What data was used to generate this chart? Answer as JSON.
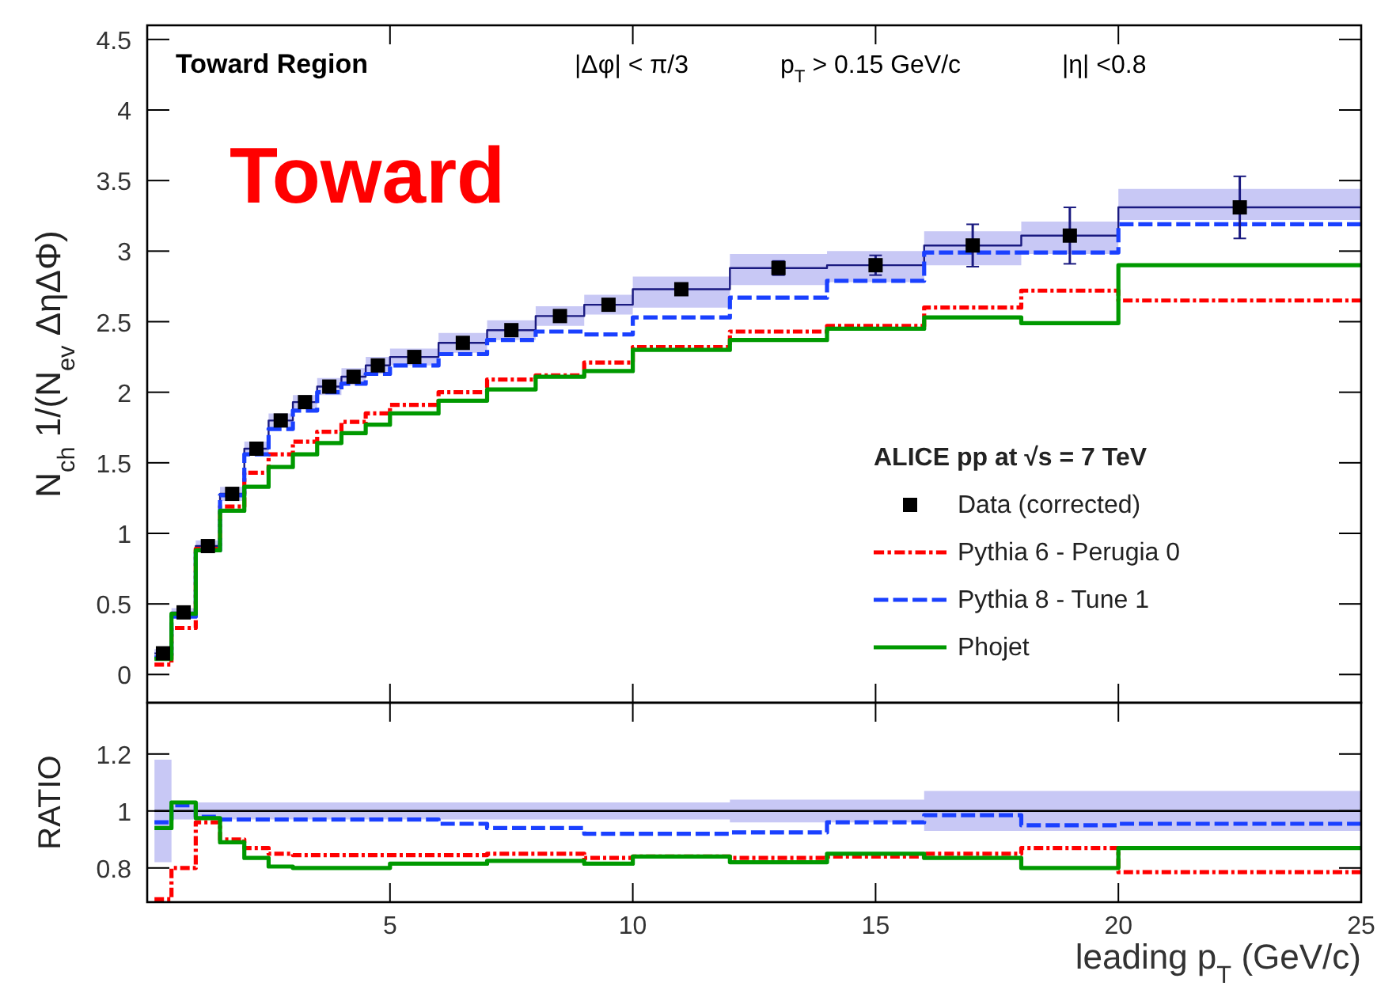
{
  "chart_data": [
    {
      "type": "step",
      "ylabel": "N$_{ch}$ 1/(N$_{ev}$ΔηΔΦ)",
      "annotations": [
        "Toward Region",
        "|Δφ| < π/3",
        "p$_{T}$ > 0.15 GeV/c",
        "|η| <0.8",
        "Toward"
      ],
      "legend_title": "ALICE pp at √s = 7 TeV",
      "legend": "bottom right",
      "xlim": [
        0,
        25
      ],
      "xticks": [
        5,
        10,
        15,
        20,
        25
      ],
      "ylim": [
        -0.2,
        4.6
      ],
      "yticks": [
        0,
        0.5,
        1,
        1.5,
        2,
        2.5,
        3,
        3.5,
        4,
        4.5
      ],
      "tick_labels": "y",
      "series": [
        {
          "color": "#1a1a80",
          "line_style": "solid",
          "x": [
            0.15,
            0.5,
            1,
            1.5,
            2,
            2.5,
            3,
            3.5,
            4,
            4.5,
            5,
            6,
            7,
            8,
            9,
            10,
            12,
            14,
            16,
            18,
            20,
            25
          ],
          "values": [
            0.15,
            0.44,
            0.91,
            1.28,
            1.6,
            1.8,
            1.93,
            2.04,
            2.11,
            2.19,
            2.25,
            2.35,
            2.44,
            2.54,
            2.62,
            2.73,
            2.88,
            2.9,
            3.04,
            3.11,
            3.31,
            3.31
          ],
          "lower": [
            0.12,
            0.41,
            0.87,
            1.23,
            1.55,
            1.75,
            1.88,
            1.98,
            2.05,
            2.13,
            2.19,
            2.28,
            2.37,
            2.47,
            2.55,
            2.6,
            2.76,
            2.78,
            2.9,
            2.98,
            3.22,
            3.22
          ],
          "upper": [
            0.18,
            0.47,
            0.95,
            1.33,
            1.65,
            1.85,
            1.98,
            2.1,
            2.17,
            2.25,
            2.31,
            2.42,
            2.51,
            2.61,
            2.69,
            2.82,
            2.98,
            3.0,
            3.14,
            3.21,
            3.44,
            3.44
          ]
        },
        {
          "name": "Pythia 6 -  Perugia 0",
          "color": "#ff0000",
          "line_style": "dashdot",
          "x": [
            0.15,
            0.5,
            1,
            1.5,
            2,
            2.5,
            3,
            3.5,
            4,
            4.5,
            5,
            6,
            7,
            8,
            9,
            10,
            12,
            14,
            16,
            18,
            20,
            25
          ],
          "values": [
            0.07,
            0.33,
            0.89,
            1.19,
            1.43,
            1.56,
            1.65,
            1.72,
            1.79,
            1.85,
            1.91,
            2.0,
            2.09,
            2.12,
            2.21,
            2.32,
            2.43,
            2.47,
            2.6,
            2.72,
            2.65,
            2.65
          ]
        },
        {
          "name": "Pythia 8 -  Tune 1",
          "color": "#1a40ff",
          "line_style": "dashed",
          "x": [
            0.15,
            0.5,
            1,
            1.5,
            2,
            2.5,
            3,
            3.5,
            4,
            4.5,
            5,
            6,
            7,
            8,
            9,
            10,
            12,
            14,
            16,
            18,
            20,
            25
          ],
          "values": [
            0.12,
            0.41,
            0.88,
            1.27,
            1.56,
            1.74,
            1.87,
            2.0,
            2.06,
            2.13,
            2.19,
            2.27,
            2.37,
            2.43,
            2.41,
            2.53,
            2.67,
            2.79,
            2.99,
            2.99,
            3.19,
            3.19
          ]
        },
        {
          "name": "Phojet",
          "color": "#009900",
          "line_style": "solid",
          "x": [
            0.15,
            0.5,
            1,
            1.5,
            2,
            2.5,
            3,
            3.5,
            4,
            4.5,
            5,
            6,
            7,
            8,
            9,
            10,
            12,
            14,
            16,
            18,
            20,
            25
          ],
          "values": [
            0.11,
            0.43,
            0.88,
            1.16,
            1.33,
            1.47,
            1.56,
            1.64,
            1.71,
            1.77,
            1.85,
            1.94,
            2.02,
            2.11,
            2.15,
            2.3,
            2.37,
            2.45,
            2.53,
            2.49,
            2.9,
            2.9
          ]
        },
        {
          "name": "Data (corrected)",
          "type": "scatter",
          "marker": "square",
          "color": "#000000",
          "x": [
            0.325,
            0.75,
            1.25,
            1.75,
            2.25,
            2.75,
            3.25,
            3.75,
            4.25,
            4.75,
            5.5,
            6.5,
            7.5,
            8.5,
            9.5,
            11,
            13,
            15,
            17,
            19,
            22.5
          ],
          "values": [
            0.15,
            0.44,
            0.91,
            1.28,
            1.6,
            1.8,
            1.93,
            2.04,
            2.11,
            2.19,
            2.25,
            2.35,
            2.44,
            2.54,
            2.62,
            2.73,
            2.88,
            2.9,
            3.04,
            3.11,
            3.31
          ],
          "errors": [
            null,
            null,
            null,
            null,
            null,
            null,
            null,
            null,
            null,
            null,
            null,
            null,
            null,
            null,
            null,
            null,
            0.05,
            0.07,
            0.15,
            0.2,
            0.22
          ]
        }
      ]
    },
    {
      "type": "step",
      "xlabel": "leading p$_{T}$ (GeV/c)",
      "ylabel": "RATIO",
      "xlim": [
        0,
        25
      ],
      "xticks": [
        5,
        10,
        15,
        20,
        25
      ],
      "ylim": [
        0.68,
        1.38
      ],
      "yticks": [
        0.8,
        1,
        1.2
      ],
      "series": [
        {
          "color": "#000000",
          "line_style": "solid",
          "x": [
            0.15,
            0.5,
            1,
            1.5,
            2,
            2.5,
            3,
            3.5,
            4,
            4.5,
            5,
            6,
            7,
            8,
            9,
            10,
            12,
            14,
            16,
            18,
            20,
            25
          ],
          "values": [
            1,
            1,
            1,
            1,
            1,
            1,
            1,
            1,
            1,
            1,
            1,
            1,
            1,
            1,
            1,
            1,
            1,
            1,
            1,
            1,
            1,
            1
          ],
          "lower": [
            0.82,
            0.97,
            0.97,
            0.97,
            0.97,
            0.97,
            0.97,
            0.97,
            0.97,
            0.97,
            0.97,
            0.97,
            0.97,
            0.97,
            0.97,
            0.97,
            0.96,
            0.96,
            0.93,
            0.93,
            0.93,
            0.93
          ],
          "upper": [
            1.18,
            1.03,
            1.03,
            1.03,
            1.03,
            1.03,
            1.03,
            1.03,
            1.03,
            1.03,
            1.03,
            1.03,
            1.03,
            1.03,
            1.03,
            1.03,
            1.04,
            1.04,
            1.07,
            1.07,
            1.07,
            1.07
          ]
        },
        {
          "color": "#ff0000",
          "line_style": "dashdot",
          "x": [
            0.15,
            0.5,
            1,
            1.5,
            2,
            2.5,
            3,
            3.5,
            4,
            4.5,
            5,
            6,
            7,
            8,
            9,
            10,
            12,
            14,
            16,
            18,
            20,
            25
          ],
          "values": [
            0.69,
            0.8,
            0.96,
            0.9,
            0.87,
            0.85,
            0.845,
            0.845,
            0.845,
            0.845,
            0.845,
            0.845,
            0.85,
            0.85,
            0.835,
            0.84,
            0.835,
            0.84,
            0.85,
            0.87,
            0.785,
            0.785
          ]
        },
        {
          "color": "#1a40ff",
          "line_style": "dashed",
          "x": [
            0.15,
            0.5,
            1,
            1.5,
            2,
            2.5,
            3,
            3.5,
            4,
            4.5,
            5,
            6,
            7,
            8,
            9,
            10,
            12,
            14,
            16,
            18,
            20,
            25
          ],
          "values": [
            0.96,
            1.02,
            0.98,
            0.97,
            0.97,
            0.97,
            0.97,
            0.97,
            0.97,
            0.97,
            0.97,
            0.955,
            0.94,
            0.94,
            0.92,
            0.92,
            0.925,
            0.96,
            0.985,
            0.95,
            0.955,
            0.955
          ]
        },
        {
          "color": "#009900",
          "line_style": "solid",
          "x": [
            0.15,
            0.5,
            1,
            1.5,
            2,
            2.5,
            3,
            3.5,
            4,
            4.5,
            5,
            6,
            7,
            8,
            9,
            10,
            12,
            14,
            16,
            18,
            20,
            25
          ],
          "values": [
            0.94,
            1.03,
            0.975,
            0.89,
            0.835,
            0.805,
            0.8,
            0.8,
            0.8,
            0.8,
            0.815,
            0.815,
            0.825,
            0.825,
            0.815,
            0.84,
            0.82,
            0.85,
            0.835,
            0.8,
            0.87,
            0.87
          ]
        }
      ]
    }
  ]
}
